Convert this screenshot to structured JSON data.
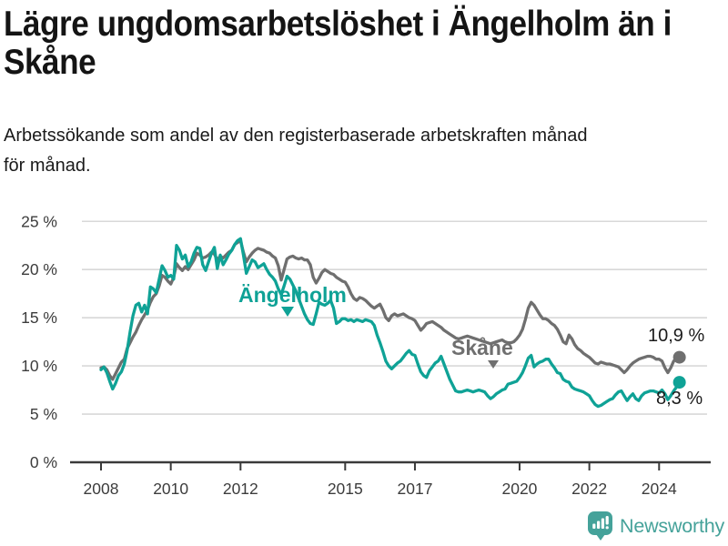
{
  "header": {
    "title": "Lägre ungdomsarbetslöshet i Ängelholm än i Skåne",
    "title_line1": "Lägre ungdomsarbetslöshet i Ängelholm än i",
    "title_line2": "Skåne",
    "subtitle": "Arbetssökande som andel av den registerbaserade arbetskraften månad för månad.",
    "subtitle_line1": "Arbetssökande som andel av den registerbaserade arbetskraften månad",
    "subtitle_line2": "för månad."
  },
  "footer": {
    "brand": "Newsworthy",
    "brand_color": "#45a29a"
  },
  "chart_data": {
    "type": "line",
    "title": "Lägre ungdomsarbetslöshet i Ängelholm än i Skåne",
    "subtitle": "Arbetssökande som andel av den registerbaserade arbetskraften månad för månad.",
    "unit": "%",
    "x_unit": "month",
    "x_start": "2008-01",
    "x_end": "2024-08",
    "xlabel": "",
    "ylabel": "",
    "ylim": [
      0,
      25
    ],
    "grid": "horizontal",
    "legend_position": "inline-labels",
    "yticks": [
      0,
      5,
      10,
      15,
      20,
      25
    ],
    "ytick_labels": [
      "0 %",
      "5 %",
      "10 %",
      "15 %",
      "20 %",
      "25 %"
    ],
    "xticks": [
      2008,
      2010,
      2012,
      2015,
      2017,
      2020,
      2022,
      2024
    ],
    "xtick_labels": [
      "2008",
      "2010",
      "2012",
      "2015",
      "2017",
      "2020",
      "2022",
      "2024"
    ],
    "series": [
      {
        "name": "Skåne",
        "color": "#6f6f6f",
        "end_label": "10,9 %",
        "last_value": 10.9,
        "values": [
          9.8,
          9.9,
          9.6,
          9.0,
          8.6,
          9.2,
          9.8,
          10.4,
          10.7,
          11.8,
          12.4,
          13.0,
          13.5,
          14.2,
          14.8,
          15.3,
          15.8,
          16.6,
          17.2,
          17.5,
          18.3,
          19.4,
          19.2,
          18.8,
          18.5,
          19.2,
          20.6,
          20.2,
          19.9,
          20.3,
          20.0,
          20.5,
          21.0,
          21.7,
          21.5,
          21.2,
          21.3,
          21.5,
          21.8,
          21.6,
          21.0,
          21.4,
          21.2,
          21.5,
          21.8,
          22.0,
          22.6,
          22.8,
          23.0,
          21.8,
          20.8,
          21.3,
          21.7,
          22.0,
          22.2,
          22.1,
          22.0,
          21.8,
          21.7,
          21.4,
          21.2,
          20.4,
          18.9,
          20.0,
          21.1,
          21.3,
          21.4,
          21.2,
          21.1,
          21.2,
          21.0,
          21.0,
          20.5,
          19.2,
          18.6,
          19.1,
          19.7,
          20.0,
          19.8,
          19.6,
          19.5,
          19.2,
          19.0,
          18.8,
          18.7,
          18.2,
          17.5,
          17.0,
          16.8,
          17.1,
          17.0,
          16.8,
          16.5,
          16.2,
          16.0,
          16.2,
          16.4,
          15.8,
          15.0,
          14.7,
          15.2,
          15.4,
          15.2,
          15.3,
          15.4,
          15.2,
          15.0,
          14.9,
          14.7,
          14.2,
          13.7,
          14.0,
          14.4,
          14.5,
          14.6,
          14.4,
          14.2,
          14.0,
          13.7,
          13.5,
          13.3,
          13.1,
          12.9,
          12.8,
          12.9,
          13.0,
          13.1,
          13.0,
          12.9,
          12.8,
          12.7,
          12.6,
          12.5,
          12.4,
          12.3,
          12.4,
          12.5,
          12.6,
          12.7,
          12.5,
          12.4,
          12.4,
          12.5,
          12.8,
          13.2,
          13.8,
          14.8,
          16.0,
          16.6,
          16.3,
          15.8,
          15.3,
          14.9,
          14.9,
          14.7,
          14.4,
          14.2,
          13.8,
          13.2,
          12.5,
          12.3,
          13.2,
          12.8,
          12.2,
          11.8,
          11.6,
          11.3,
          11.1,
          10.9,
          10.6,
          10.3,
          10.2,
          10.4,
          10.3,
          10.2,
          10.2,
          10.1,
          10.0,
          9.9,
          9.6,
          9.3,
          9.6,
          10.0,
          10.3,
          10.5,
          10.7,
          10.8,
          10.9,
          11.0,
          11.0,
          10.9,
          10.7,
          10.7,
          10.5,
          9.8,
          9.3,
          9.8,
          10.5,
          10.7,
          10.9
        ]
      },
      {
        "name": "Ängelholm",
        "color": "#0fa296",
        "end_label": "8,3 %",
        "last_value": 8.3,
        "values": [
          9.6,
          9.9,
          9.3,
          8.4,
          7.6,
          8.2,
          9.0,
          9.4,
          10.2,
          11.6,
          13.5,
          15.2,
          16.3,
          16.5,
          15.6,
          16.3,
          15.4,
          18.2,
          18.0,
          17.6,
          19.0,
          20.4,
          19.9,
          19.2,
          19.4,
          19.0,
          22.5,
          22.0,
          21.1,
          21.5,
          20.3,
          20.8,
          21.7,
          22.3,
          22.2,
          20.5,
          19.9,
          20.8,
          21.7,
          22.3,
          20.1,
          21.5,
          20.5,
          21.0,
          21.6,
          22.0,
          22.6,
          23.0,
          23.2,
          21.5,
          19.6,
          20.3,
          21.0,
          20.8,
          20.2,
          20.4,
          20.6,
          20.0,
          19.5,
          19.2,
          18.8,
          18.0,
          17.4,
          18.3,
          19.3,
          19.0,
          18.4,
          17.8,
          17.0,
          16.2,
          15.4,
          14.8,
          14.4,
          14.3,
          15.4,
          16.6,
          16.4,
          16.3,
          16.5,
          16.8,
          16.0,
          14.4,
          14.6,
          14.9,
          14.9,
          14.7,
          14.8,
          14.6,
          14.8,
          14.7,
          14.6,
          14.8,
          14.7,
          14.6,
          14.2,
          13.2,
          12.4,
          11.5,
          10.5,
          10.0,
          9.7,
          10.0,
          10.3,
          10.5,
          10.9,
          11.3,
          11.6,
          11.2,
          11.1,
          10.2,
          9.4,
          9.0,
          8.8,
          9.5,
          9.9,
          10.3,
          10.5,
          11.0,
          10.2,
          9.4,
          8.6,
          8.0,
          7.4,
          7.3,
          7.3,
          7.4,
          7.5,
          7.4,
          7.3,
          7.4,
          7.5,
          7.4,
          7.3,
          6.9,
          6.6,
          6.8,
          7.1,
          7.3,
          7.5,
          7.6,
          8.1,
          8.2,
          8.3,
          8.4,
          8.8,
          9.3,
          10.0,
          10.8,
          11.1,
          9.9,
          10.2,
          10.4,
          10.5,
          10.7,
          10.7,
          10.2,
          9.8,
          9.3,
          9.2,
          8.6,
          8.4,
          8.3,
          7.8,
          7.6,
          7.5,
          7.4,
          7.3,
          7.1,
          6.9,
          6.4,
          6.0,
          5.8,
          5.9,
          6.1,
          6.3,
          6.5,
          6.6,
          7.0,
          7.3,
          7.4,
          6.9,
          6.4,
          6.8,
          7.1,
          6.6,
          6.4,
          6.9,
          7.2,
          7.3,
          7.4,
          7.4,
          7.3,
          7.2,
          7.5,
          7.1,
          6.5,
          6.9,
          7.4,
          7.8,
          8.3
        ]
      }
    ],
    "annotations": [
      {
        "text": "10,9 %",
        "series": "Skåne",
        "position": "end"
      },
      {
        "text": "8,3 %",
        "series": "Ängelholm",
        "position": "end"
      }
    ]
  }
}
